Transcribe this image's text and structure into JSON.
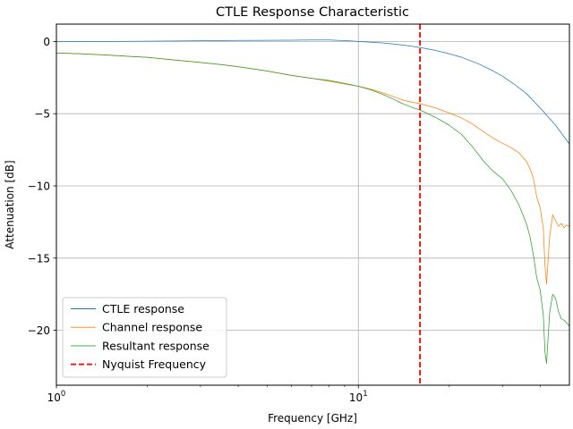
{
  "chart_data": {
    "type": "line",
    "title": "CTLE Response Characteristic",
    "xlabel": "Frequency [GHz]",
    "ylabel": "Attenuation [dB]",
    "xscale": "log",
    "xlim": [
      1,
      50
    ],
    "ylim": [
      -23.8,
      1.2
    ],
    "grid": true,
    "legend_position": "lower-left",
    "x_ticks": [
      {
        "value": 1,
        "base": "10",
        "exp": "0"
      },
      {
        "value": 10,
        "base": "10",
        "exp": "1"
      }
    ],
    "y_ticks": [
      {
        "value": 0,
        "label": "0"
      },
      {
        "value": -5,
        "label": "−5"
      },
      {
        "value": -10,
        "label": "−10"
      },
      {
        "value": -15,
        "label": "−15"
      },
      {
        "value": -20,
        "label": "−20"
      }
    ],
    "nyquist": {
      "name": "Nyquist Frequency",
      "x": 16,
      "color": "#ff0000"
    },
    "series": [
      {
        "name": "CTLE response",
        "color": "#1f77b4",
        "x": [
          1,
          1.5,
          2,
          3,
          4,
          5,
          6,
          7,
          8,
          9,
          10,
          11,
          12,
          13,
          14,
          15,
          16,
          18,
          20,
          22,
          25,
          28,
          30,
          33,
          36,
          40,
          45,
          50
        ],
        "y": [
          0,
          0,
          0.02,
          0.05,
          0.07,
          0.08,
          0.09,
          0.1,
          0.1,
          0.06,
          0,
          -0.05,
          -0.1,
          -0.17,
          -0.25,
          -0.33,
          -0.42,
          -0.62,
          -0.85,
          -1.1,
          -1.55,
          -2.05,
          -2.4,
          -3.0,
          -3.6,
          -4.6,
          -5.8,
          -7.1
        ]
      },
      {
        "name": "Channel response",
        "color": "#ff7f0e",
        "x": [
          1,
          1.2,
          1.5,
          1.8,
          2,
          2.5,
          3,
          3.5,
          4,
          5,
          6,
          7,
          8,
          9,
          10,
          11,
          12,
          13,
          14,
          15,
          16,
          18,
          20,
          22,
          24,
          26,
          28,
          30,
          32,
          34,
          36,
          37,
          38,
          39,
          40,
          41,
          41.5,
          42,
          43,
          44,
          45,
          46,
          47,
          48,
          49,
          50
        ],
        "y": [
          -0.8,
          -0.85,
          -0.95,
          -1.05,
          -1.1,
          -1.3,
          -1.45,
          -1.6,
          -1.75,
          -2.05,
          -2.35,
          -2.55,
          -2.75,
          -2.95,
          -3.1,
          -3.3,
          -3.55,
          -3.8,
          -4.05,
          -4.2,
          -4.3,
          -4.6,
          -4.95,
          -5.3,
          -5.75,
          -6.25,
          -6.7,
          -7.05,
          -7.35,
          -7.7,
          -8.3,
          -8.8,
          -9.5,
          -10.8,
          -11.5,
          -13.0,
          -15.5,
          -16.8,
          -13.5,
          -12.0,
          -12.4,
          -12.8,
          -12.6,
          -12.9,
          -12.7,
          -12.8
        ]
      },
      {
        "name": "Resultant response",
        "color": "#2ca02c",
        "x": [
          1,
          1.2,
          1.5,
          1.8,
          2,
          2.5,
          3,
          3.5,
          4,
          5,
          6,
          7,
          8,
          9,
          10,
          11,
          12,
          13,
          14,
          15,
          16,
          18,
          20,
          22,
          24,
          26,
          28,
          30,
          32,
          34,
          36,
          37,
          38,
          39,
          40,
          41,
          41.5,
          42,
          42.5,
          43,
          44,
          45,
          46,
          47,
          48,
          49,
          50
        ],
        "y": [
          -0.8,
          -0.85,
          -0.95,
          -1.05,
          -1.1,
          -1.3,
          -1.45,
          -1.6,
          -1.75,
          -2.05,
          -2.35,
          -2.55,
          -2.7,
          -2.9,
          -3.1,
          -3.35,
          -3.65,
          -3.97,
          -4.3,
          -4.55,
          -4.75,
          -5.25,
          -5.8,
          -6.45,
          -7.35,
          -8.3,
          -9.0,
          -9.5,
          -10.3,
          -11.3,
          -12.6,
          -13.5,
          -14.8,
          -16.4,
          -17.2,
          -19.0,
          -21.5,
          -22.3,
          -20.5,
          -18.8,
          -17.5,
          -17.8,
          -18.7,
          -19.2,
          -19.3,
          -19.5,
          -19.7
        ]
      }
    ]
  }
}
